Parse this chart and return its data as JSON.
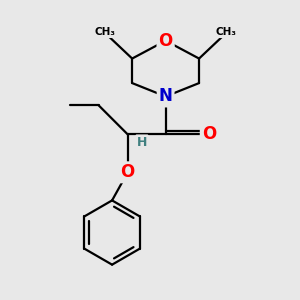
{
  "bg_color": "#e8e8e8",
  "bond_color": "#000000",
  "bond_width": 1.6,
  "atom_colors": {
    "O": "#ff0000",
    "N": "#0000cc",
    "C": "#000000",
    "H": "#408080"
  },
  "font_size_atoms": 12,
  "font_size_H": 9,
  "xlim": [
    -2.8,
    2.8
  ],
  "ylim": [
    -3.8,
    2.8
  ]
}
